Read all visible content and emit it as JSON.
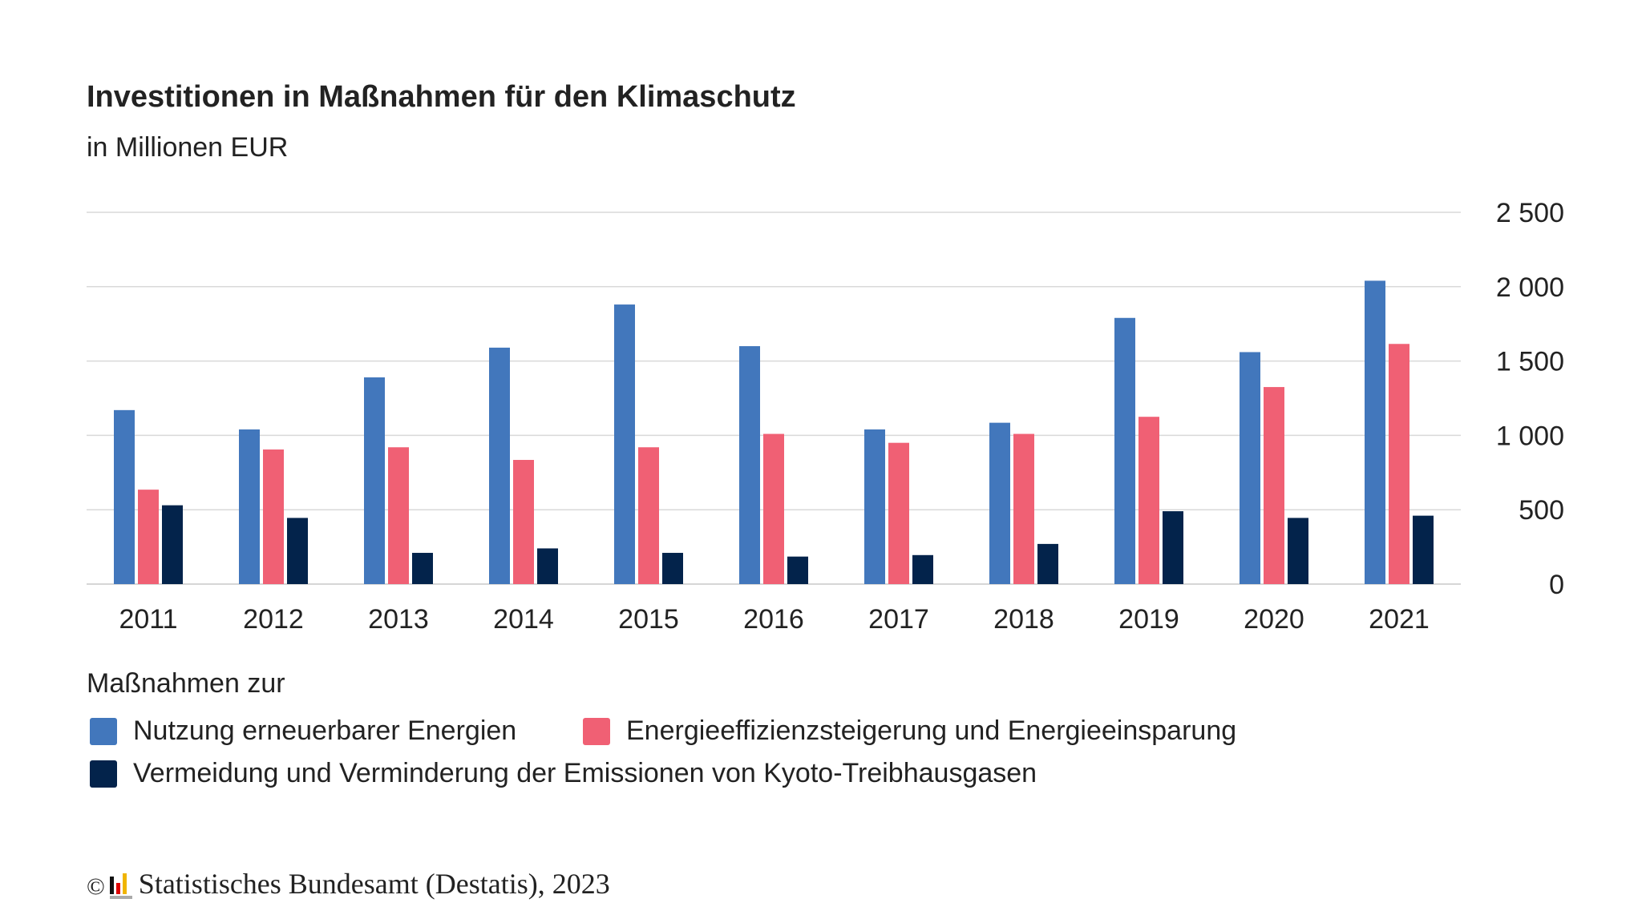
{
  "chart_data": {
    "type": "bar",
    "title": "Investitionen in Maßnahmen für den Klimaschutz",
    "subtitle": "in Millionen EUR",
    "categories": [
      "2011",
      "2012",
      "2013",
      "2014",
      "2015",
      "2016",
      "2017",
      "2018",
      "2019",
      "2020",
      "2021"
    ],
    "legend_title": "Maßnahmen zur",
    "legend_placement": "bottom",
    "grid": true,
    "ylim": [
      0,
      2500
    ],
    "yticks": [
      0,
      500,
      1000,
      1500,
      2000,
      2500
    ],
    "ytick_labels": [
      "0",
      "500",
      "1 000",
      "1 500",
      "2 000",
      "2 500"
    ],
    "yaxis_side": "right",
    "series": [
      {
        "name": "Nutzung erneuerbarer Energien",
        "color": "#4277bc",
        "values": [
          1170,
          1040,
          1390,
          1590,
          1880,
          1600,
          1040,
          1085,
          1790,
          1560,
          2040
        ]
      },
      {
        "name": "Energieeffizienzsteigerung und Energieeinsparung",
        "color": "#f06074",
        "values": [
          635,
          905,
          920,
          835,
          920,
          1010,
          950,
          1010,
          1125,
          1325,
          1615
        ]
      },
      {
        "name": "Vermeidung und Verminderung der Emissionen von Kyoto-Treibhausgasen",
        "color": "#03234b",
        "values": [
          530,
          445,
          210,
          240,
          210,
          185,
          195,
          270,
          490,
          445,
          460
        ]
      }
    ]
  },
  "footer": {
    "copyright": "©",
    "source": "Statistisches Bundesamt (Destatis), 2023"
  }
}
